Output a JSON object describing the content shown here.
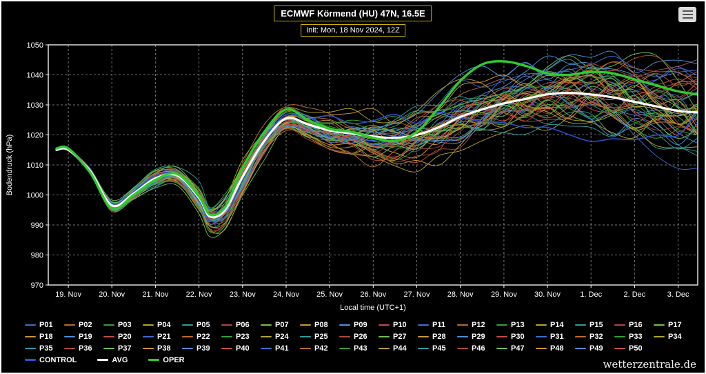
{
  "header": {
    "title": "ECMWF Körmend (HU) 47N, 16.5E",
    "subtitle": "Init: Mon, 18 Nov 2024, 12Z",
    "menu_icon": "hamburger"
  },
  "footer": {
    "watermark": "wetterzentrale.de"
  },
  "chart_data": {
    "type": "line",
    "title": "ECMWF Körmend (HU) 47N, 16.5E",
    "subtitle": "Init: Mon, 18 Nov 2024, 12Z",
    "xlabel": "Local time (UTC+1)",
    "ylabel": "Bodendruck (hPa)",
    "ylim": [
      970,
      1050
    ],
    "ytick_step": 10,
    "grid": {
      "color": "#777777",
      "dash": "3,3",
      "border_color": "#ffffff"
    },
    "legend_position": "bottom",
    "x_tick_labels": [
      "19. Nov",
      "20. Nov",
      "21. Nov",
      "22. Nov",
      "23. Nov",
      "24. Nov",
      "25. Nov",
      "26. Nov",
      "27. Nov",
      "28. Nov",
      "29. Nov",
      "30. Nov",
      "1. Dec",
      "2. Dec",
      "3. Dec"
    ],
    "x_domain": [
      -0.46,
      14.45
    ],
    "x": [
      -0.27,
      0,
      0.5,
      1,
      1.5,
      2,
      2.5,
      3,
      3.25,
      3.6,
      4,
      4.5,
      5,
      5.5,
      6,
      6.5,
      7,
      7.5,
      8,
      8.5,
      9,
      9.5,
      10,
      10.5,
      11,
      11.5,
      12,
      12.5,
      13,
      13.5,
      14,
      14.43
    ],
    "series": [
      {
        "name": "AVG",
        "color": "#ffffff",
        "width": 3.2,
        "values": [
          1015,
          1015,
          1008,
          996.5,
          1000.5,
          1005.5,
          1006.5,
          999,
          992.8,
          995,
          1006,
          1018,
          1025.5,
          1023.5,
          1021.5,
          1020.5,
          1019.5,
          1019,
          1020,
          1022.5,
          1026,
          1028.5,
          1030.5,
          1032,
          1033.5,
          1034,
          1033.5,
          1032.5,
          1031,
          1029.5,
          1028,
          1027.5
        ]
      },
      {
        "name": "OPER",
        "color": "#2ecc2e",
        "width": 3.4,
        "values": [
          1015.5,
          1015.5,
          1007.5,
          995.5,
          1000,
          1005,
          1007,
          999.5,
          993.5,
          996,
          1009,
          1021,
          1028.5,
          1025,
          1022,
          1021,
          1019,
          1018,
          1021,
          1029,
          1038,
          1043.5,
          1044.5,
          1043,
          1040.5,
          1040,
          1041,
          1040.5,
          1038.5,
          1036.5,
          1034.5,
          1033.5
        ]
      },
      {
        "name": "CONTROL",
        "color": "#2a50d0",
        "width": 1.6,
        "derived": "ensemble"
      }
    ],
    "ensemble": {
      "count": 50,
      "labels": [
        "P01",
        "P02",
        "P03",
        "P04",
        "P05",
        "P06",
        "P07",
        "P08",
        "P09",
        "P10",
        "P11",
        "P12",
        "P13",
        "P14",
        "P15",
        "P16",
        "P17",
        "P18",
        "P19",
        "P20",
        "P21",
        "P22",
        "P23",
        "P24",
        "P25",
        "P26",
        "P27",
        "P28",
        "P29",
        "P30",
        "P31",
        "P32",
        "P33",
        "P34",
        "P35",
        "P36",
        "P37",
        "P38",
        "P39",
        "P40",
        "P41",
        "P42",
        "P43",
        "P44",
        "P45",
        "P46",
        "P47",
        "P48",
        "P49",
        "P50"
      ],
      "palette": [
        "#3e6fd0",
        "#c06a2a",
        "#2fa32f",
        "#b5a428",
        "#2a9d9d",
        "#b0483a",
        "#6fc04a",
        "#d0952f",
        "#4a90d9",
        "#c44a4a"
      ],
      "spread": [
        0.3,
        0.4,
        0.9,
        1.6,
        1.8,
        2.2,
        2.2,
        3.5,
        4.2,
        4.6,
        4.6,
        4,
        3.2,
        3.8,
        4.8,
        5.5,
        6.5,
        7,
        7.8,
        8.5,
        9,
        9,
        9,
        9,
        9,
        9.5,
        10,
        10.5,
        11,
        11.5,
        12,
        12
      ]
    },
    "legend_extra_order": [
      "CONTROL",
      "AVG",
      "OPER"
    ]
  }
}
